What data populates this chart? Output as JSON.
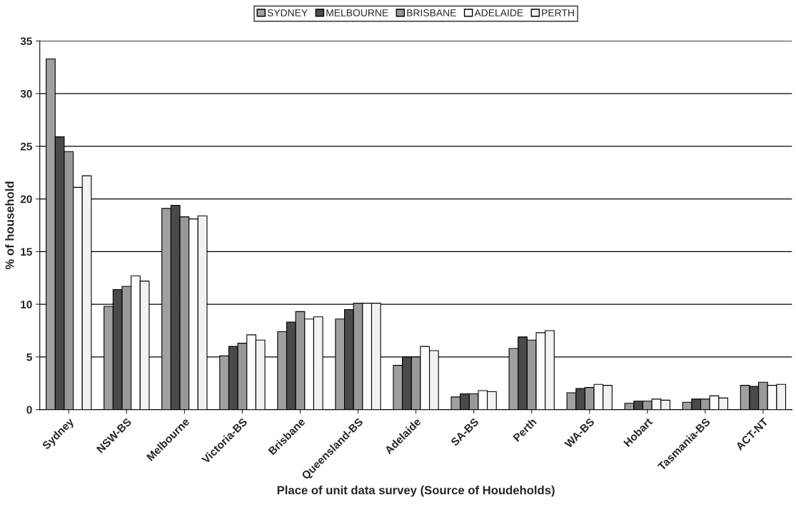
{
  "chart_data": {
    "type": "bar",
    "xlabel": "Place of unit data survey (Source of Houdeholds)",
    "ylabel": "% of household",
    "categories": [
      "Sydney",
      "NSW-BS",
      "Melbourne",
      "Victoria-BS",
      "Brisbane",
      "Queensland-BS",
      "Adelaide",
      "SA-BS",
      "Perth",
      "WA-BS",
      "Hobart",
      "Tasmania-BS",
      "ACT-NT"
    ],
    "series": [
      {
        "name": "SYDNEY",
        "color": "#a0a0a0",
        "values": [
          33.3,
          9.8,
          19.1,
          5.1,
          7.4,
          8.6,
          4.2,
          1.2,
          5.8,
          1.6,
          0.6,
          0.7,
          2.3
        ]
      },
      {
        "name": "MELBOURNE",
        "color": "#4a4a4a",
        "values": [
          25.9,
          11.4,
          19.4,
          6.0,
          8.3,
          9.5,
          5.0,
          1.5,
          6.9,
          2.0,
          0.8,
          1.0,
          2.2
        ]
      },
      {
        "name": "BRISBANE",
        "color": "#999999",
        "values": [
          24.5,
          11.7,
          18.3,
          6.3,
          9.3,
          10.1,
          5.0,
          1.5,
          6.6,
          2.1,
          0.8,
          1.0,
          2.6
        ]
      },
      {
        "name": "ADELAIDE",
        "color": "#fcfcfc",
        "values": [
          21.1,
          12.7,
          18.1,
          7.1,
          8.6,
          10.1,
          6.0,
          1.8,
          7.3,
          2.4,
          1.0,
          1.3,
          2.3
        ]
      },
      {
        "name": "PERTH",
        "color": "#f2f2f2",
        "values": [
          22.2,
          12.2,
          18.4,
          6.6,
          8.8,
          10.1,
          5.6,
          1.7,
          7.5,
          2.3,
          0.9,
          1.1,
          2.4
        ]
      }
    ],
    "ylim": [
      0,
      35
    ],
    "yticks": [
      0,
      5,
      10,
      15,
      20,
      25,
      30,
      35
    ],
    "grid": "y",
    "legend": "top"
  }
}
